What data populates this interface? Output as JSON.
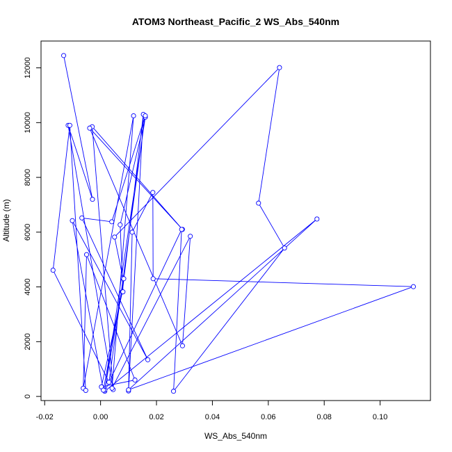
{
  "chart_data": {
    "type": "line",
    "title": "ATOM3 Northeast_Pacific_2 WS_Abs_540nm",
    "xlabel": "WS_Abs_540nm",
    "ylabel": "Altitude (m)",
    "xlim": [
      -0.0213,
      0.118
    ],
    "ylim": [
      -150,
      12980
    ],
    "x_ticks": [
      -0.02,
      0.0,
      0.02,
      0.04,
      0.06,
      0.08,
      0.1
    ],
    "x_tick_labels": [
      "-0.02",
      "0.00",
      "0.02",
      "0.04",
      "0.06",
      "0.08",
      "0.10"
    ],
    "y_ticks": [
      0,
      2000,
      4000,
      6000,
      8000,
      10000,
      12000
    ],
    "y_tick_labels": [
      "0",
      "2000",
      "4000",
      "6000",
      "8000",
      "10000",
      "12000"
    ],
    "grid": false,
    "legend": "none",
    "series": [
      {
        "color": "#0000FF",
        "marker": "open-circle",
        "x": [
          -0.0132,
          -0.0029,
          -0.0116,
          0.0045,
          -0.003,
          0.0293,
          -0.0039,
          0.0293,
          0.0321,
          0.0041,
          0.0118,
          -0.0062,
          -0.005,
          0.0123,
          0.0003,
          0.0078,
          0.0153,
          0.01,
          0.0113,
          0.0187,
          0.0188,
          0.1119,
          0.01,
          0.0774,
          0.0015,
          0.029,
          0.0261,
          0.0658,
          0.0565,
          0.064,
          0.005,
          0.008,
          0.008,
          0.007,
          0.016,
          0.0015,
          0.0083,
          0.001,
          -0.0101,
          0.0169,
          -0.0067,
          0.004,
          0.016,
          0.003,
          -0.017,
          -0.011,
          -0.0053
        ],
        "y": [
          12450,
          7200,
          9900,
          250,
          9850,
          6100,
          9800,
          1850,
          5850,
          300,
          10250,
          300,
          5180,
          600,
          350,
          3820,
          10300,
          200,
          6000,
          7450,
          4300,
          4010,
          240,
          6480,
          190,
          6100,
          190,
          5420,
          7060,
          12010,
          5820,
          4320,
          3820,
          6270,
          10200,
          230,
          4300,
          230,
          6420,
          1340,
          6520,
          6380,
          10250,
          520,
          4610,
          9900,
          220
        ]
      }
    ]
  }
}
